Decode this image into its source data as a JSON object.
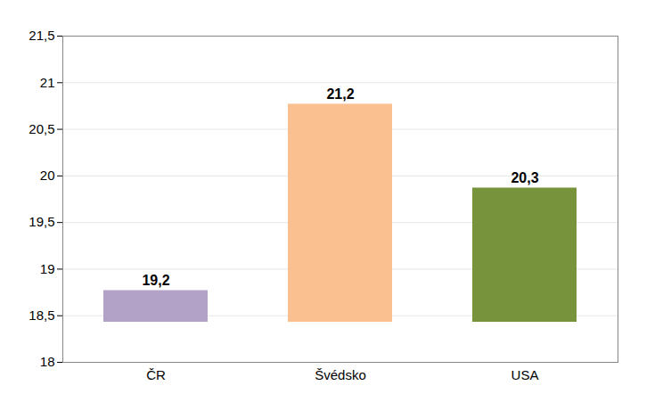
{
  "chart_data": {
    "type": "bar",
    "categories": [
      "ČR",
      "Švédsko",
      "USA"
    ],
    "values": [
      19.2,
      21.2,
      20.3
    ],
    "value_labels": [
      "19,2",
      "21,2",
      "20,3"
    ],
    "colors": [
      "#b3a2c7",
      "#fac090",
      "#77933c"
    ],
    "ylim": [
      18,
      21.5
    ],
    "yticks": [
      18,
      {
        "value": 18.5,
        "label": "18,5"
      },
      19,
      {
        "value": 19.5,
        "label": "19,5"
      },
      20,
      {
        "value": 20.5,
        "label": "20,5"
      },
      21,
      {
        "value": 21.5,
        "label": "21,5"
      }
    ],
    "grid": true,
    "data_labels": true
  }
}
